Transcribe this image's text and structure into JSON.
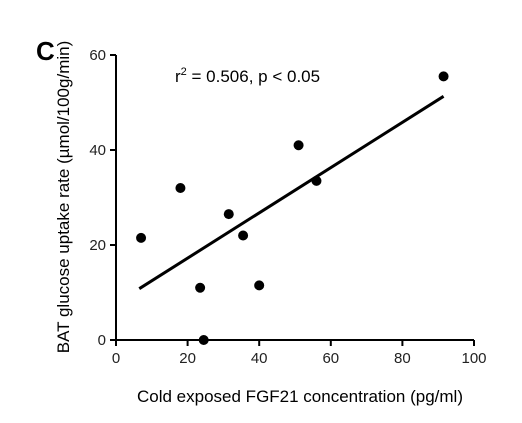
{
  "panel_label": "C",
  "chart_data": {
    "type": "scatter",
    "annotation": {
      "prefix": "r",
      "superscript": "2",
      "suffix": " = 0.506, p < 0.05"
    },
    "xlabel": "Cold exposed FGF21 concentration (pg/ml)",
    "ylabel": "BAT glucose uptake rate (µmol/100g/min)",
    "xlim": [
      0,
      100
    ],
    "ylim": [
      0,
      60
    ],
    "xticks": [
      0,
      20,
      40,
      60,
      80,
      100
    ],
    "yticks": [
      0,
      20,
      40,
      60
    ],
    "points": [
      {
        "x": 7,
        "y": 21.5
      },
      {
        "x": 18,
        "y": 32
      },
      {
        "x": 23.5,
        "y": 11
      },
      {
        "x": 24.5,
        "y": 0
      },
      {
        "x": 31.5,
        "y": 26.5
      },
      {
        "x": 35.5,
        "y": 22
      },
      {
        "x": 40,
        "y": 11.5
      },
      {
        "x": 51,
        "y": 41
      },
      {
        "x": 56,
        "y": 33.5
      },
      {
        "x": 91.5,
        "y": 55.5
      }
    ],
    "fit_line": {
      "x": [
        6.5,
        91.5
      ],
      "y": [
        10.8,
        51.3
      ]
    },
    "grid": false,
    "legend": "none"
  }
}
